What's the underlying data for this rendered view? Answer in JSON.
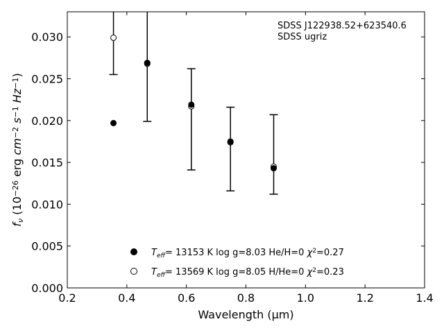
{
  "chart_data": {
    "type": "scatter",
    "title": "",
    "xlabel": "Wavelength (μm)",
    "ylabel": "f_ν (10^-26 erg cm^-2 s^-1 Hz^-1)",
    "xlim": [
      0.2,
      1.4
    ],
    "ylim": [
      0.0,
      0.033
    ],
    "xticks": [
      0.2,
      0.4,
      0.6,
      0.8,
      1.0,
      1.2,
      1.4
    ],
    "xtick_labels": [
      "0.2",
      "0.4",
      "0.6",
      "0.8",
      "1.0",
      "1.2",
      "1.4"
    ],
    "yticks": [
      0.0,
      0.005,
      0.01,
      0.015,
      0.02,
      0.025,
      0.03
    ],
    "ytick_labels": [
      "0.000",
      "0.005",
      "0.010",
      "0.015",
      "0.020",
      "0.025",
      "0.030"
    ],
    "grid": false,
    "annotation": {
      "object": "SDSS J122938.52+623540.6",
      "photometry": "SDSS ugriz"
    },
    "observed": {
      "x": [
        0.3551,
        0.4686,
        0.6166,
        0.748,
        0.8932
      ],
      "y": [
        0.0299,
        0.0269,
        0.0218,
        0.0174,
        0.0145
      ],
      "yerr_low": [
        0.0044,
        0.007,
        0.0077,
        0.0058,
        0.0033
      ],
      "yerr_high": [
        0.0044,
        0.007,
        0.0044,
        0.0042,
        0.0062
      ]
    },
    "series": [
      {
        "name": "T_eff= 13153 K  log g=8.03  He/H=0  χ²=0.27",
        "marker": "filled-circle",
        "x": [
          0.3551,
          0.4686,
          0.6166,
          0.748,
          0.8932
        ],
        "y": [
          0.0197,
          0.0269,
          0.0219,
          0.0175,
          0.0143
        ]
      },
      {
        "name": "T_eff= 13569 K  log g=8.05  H/He=0  χ²=0.23",
        "marker": "open-circle",
        "x": [
          0.3551,
          0.4686,
          0.6166,
          0.748,
          0.8932
        ],
        "y": [
          0.0299,
          0.0268,
          0.0217,
          0.0174,
          0.0145
        ]
      }
    ],
    "legend": {
      "placement": "bottom-center",
      "entries": [
        {
          "t_label": "T",
          "t_sub": "eff",
          "teff": "= 13153 K",
          "logg": "log g=8.03",
          "comp": "He/H=0",
          "chi_sym": "χ",
          "chi_sup": "2",
          "chi_val": "=0.27"
        },
        {
          "t_label": "T",
          "t_sub": "eff",
          "teff": "= 13569 K",
          "logg": "log g=8.05",
          "comp": "H/He=0",
          "chi_sym": "χ",
          "chi_sup": "2",
          "chi_val": "=0.23"
        }
      ]
    },
    "colors": {
      "marker": "#000000",
      "axes": "#000000"
    }
  }
}
